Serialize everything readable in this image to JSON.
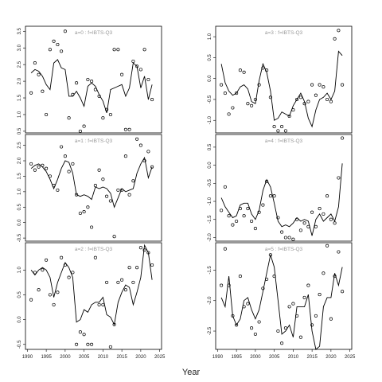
{
  "xlabel": "Year",
  "x_ticks": [
    1990,
    1995,
    2000,
    2005,
    2010,
    2015,
    2020,
    2025
  ],
  "chart_data": [
    {
      "type": "scatter",
      "title": "a=0  :  f=IBTS-Q3",
      "xlim": [
        1989.5,
        2025.5
      ],
      "ylim": [
        0.45,
        3.65
      ],
      "yticks": [
        0.5,
        1.0,
        1.5,
        2.0,
        2.5,
        3.0,
        3.5
      ],
      "ytick_labels": [
        "0.5",
        "1.0",
        "1.5",
        "2.0",
        "2.5",
        "3.0",
        "3.5"
      ],
      "x": [
        1991,
        1992,
        1993,
        1994,
        1995,
        1996,
        1997,
        1998,
        1999,
        2000,
        2001,
        2002,
        2003,
        2004,
        2005,
        2006,
        2007,
        2008,
        2009,
        2010,
        2011,
        2012,
        2013,
        2014,
        2015,
        2016,
        2017,
        2018,
        2019,
        2020,
        2021,
        2022,
        2023
      ],
      "observed": [
        1.65,
        2.55,
        2.2,
        1.7,
        1.0,
        2.95,
        3.2,
        3.1,
        2.9,
        3.5,
        0.9,
        1.6,
        1.95,
        0.5,
        0.65,
        2.05,
        2.0,
        1.75,
        1.55,
        0.9,
        1.15,
        1.0,
        2.95,
        2.95,
        2.2,
        0.55,
        0.55,
        2.6,
        2.45,
        2.35,
        2.95,
        2.05,
        1.45
      ],
      "fitted": [
        2.25,
        2.35,
        2.3,
        2.15,
        1.9,
        1.75,
        2.55,
        2.65,
        2.4,
        2.35,
        1.55,
        1.55,
        1.7,
        1.5,
        1.25,
        1.85,
        1.95,
        1.85,
        1.6,
        1.4,
        1.05,
        1.75,
        1.8,
        1.85,
        1.9,
        1.55,
        1.8,
        2.55,
        2.45,
        1.8,
        2.15,
        1.45,
        1.9
      ]
    },
    {
      "type": "scatter",
      "title": "a=1  :  f=IBTS-Q3",
      "xlim": [
        1989.5,
        2025.5
      ],
      "ylim": [
        -0.6,
        2.85
      ],
      "yticks": [
        -0.5,
        0.0,
        0.5,
        1.0,
        1.5,
        2.0,
        2.5
      ],
      "ytick_labels": [
        "-0.5",
        "0.0",
        "0.5",
        "1.0",
        "1.5",
        "2.0",
        "2.5"
      ],
      "x": [
        1991,
        1992,
        1993,
        1994,
        1995,
        1996,
        1997,
        1998,
        1999,
        2000,
        2001,
        2002,
        2003,
        2004,
        2005,
        2006,
        2007,
        2008,
        2009,
        2010,
        2011,
        2012,
        2013,
        2014,
        2015,
        2016,
        2017,
        2018,
        2019,
        2020,
        2021,
        2022,
        2023
      ],
      "observed": [
        1.9,
        1.7,
        1.8,
        1.85,
        1.75,
        1.5,
        1.2,
        1.05,
        2.45,
        2.15,
        1.65,
        1.9,
        0.9,
        0.3,
        0.35,
        0.5,
        -0.15,
        1.2,
        1.7,
        1.4,
        0.85,
        0.7,
        -0.45,
        1.05,
        1.05,
        2.15,
        0.9,
        1.35,
        2.7,
        2.5,
        2.0,
        2.3,
        1.8
      ],
      "fitted": [
        1.75,
        1.85,
        1.9,
        1.8,
        1.65,
        1.4,
        1.1,
        1.4,
        1.75,
        2.0,
        1.95,
        1.6,
        0.9,
        0.85,
        0.9,
        0.85,
        0.75,
        1.15,
        1.1,
        1.15,
        1.1,
        0.95,
        0.5,
        0.8,
        1.1,
        1.0,
        1.05,
        1.1,
        1.6,
        1.9,
        2.1,
        1.45,
        1.8
      ]
    },
    {
      "type": "scatter",
      "title": "a=2  :  f=IBTS-Q3",
      "xlim": [
        1989.5,
        2025.5
      ],
      "ylim": [
        -0.6,
        1.55
      ],
      "yticks": [
        -0.5,
        0.0,
        0.5,
        1.0
      ],
      "ytick_labels": [
        "-0.5",
        "0.0",
        "0.5",
        "1.0"
      ],
      "x": [
        1991,
        1992,
        1993,
        1994,
        1995,
        1996,
        1997,
        1998,
        1999,
        2000,
        2001,
        2002,
        2003,
        2004,
        2005,
        2006,
        2007,
        2008,
        2009,
        2010,
        2011,
        2012,
        2013,
        2014,
        2015,
        2016,
        2017,
        2018,
        2019,
        2020,
        2021,
        2022,
        2023
      ],
      "observed": [
        0.4,
        0.95,
        0.6,
        1.0,
        1.2,
        0.5,
        0.3,
        0.55,
        1.25,
        1.1,
        0.85,
        0.95,
        -0.5,
        -0.25,
        -0.3,
        -0.5,
        -0.5,
        1.25,
        0.3,
        0.3,
        0.75,
        -0.55,
        -0.1,
        0.75,
        0.8,
        0.6,
        1.05,
        0.75,
        1.05,
        1.45,
        1.4,
        1.35,
        1.1
      ],
      "fitted": [
        1.0,
        0.9,
        1.0,
        1.05,
        1.0,
        0.85,
        0.45,
        0.75,
        0.95,
        1.15,
        1.05,
        0.85,
        -0.05,
        0.0,
        0.2,
        0.15,
        0.3,
        0.35,
        0.35,
        0.45,
        0.1,
        0.05,
        -0.1,
        0.35,
        0.55,
        0.7,
        0.65,
        0.3,
        0.55,
        0.85,
        1.5,
        1.35,
        0.8
      ]
    },
    {
      "type": "scatter",
      "title": "a=3  :  f=IBTS-Q3",
      "xlim": [
        1989.5,
        2025.5
      ],
      "ylim": [
        -1.3,
        1.25
      ],
      "yticks": [
        -1.0,
        -0.5,
        0.0,
        0.5,
        1.0
      ],
      "ytick_labels": [
        "-1.0",
        "-0.5",
        "0.0",
        "0.5",
        "1.0"
      ],
      "x": [
        1991,
        1992,
        1993,
        1994,
        1995,
        1996,
        1997,
        1998,
        1999,
        2000,
        2001,
        2002,
        2003,
        2004,
        2005,
        2006,
        2007,
        2008,
        2009,
        2010,
        2011,
        2012,
        2013,
        2014,
        2015,
        2016,
        2017,
        2018,
        2019,
        2020,
        2021,
        2022,
        2023
      ],
      "observed": [
        -0.15,
        -0.35,
        -0.85,
        -0.7,
        -0.35,
        0.2,
        0.15,
        -0.6,
        -0.65,
        -0.5,
        -0.15,
        0.25,
        0.2,
        -0.45,
        -1.15,
        -1.25,
        -1.15,
        -1.25,
        -0.9,
        -0.75,
        -0.5,
        -0.45,
        -0.6,
        -0.55,
        -0.15,
        -0.4,
        -0.15,
        -0.2,
        -0.5,
        -0.55,
        0.95,
        1.15,
        -0.15
      ],
      "fitted": [
        0.35,
        -0.1,
        -0.3,
        -0.4,
        -0.35,
        -0.2,
        -0.15,
        -0.25,
        -0.55,
        -0.6,
        -0.05,
        0.35,
        0.15,
        -0.3,
        -1.0,
        -0.95,
        -0.8,
        -0.85,
        -0.9,
        -0.65,
        -0.5,
        -0.35,
        -0.55,
        -0.95,
        -1.15,
        -0.75,
        -0.5,
        -0.45,
        -0.35,
        -0.5,
        -0.3,
        0.65,
        0.55
      ]
    },
    {
      "type": "scatter",
      "title": "a=4  :  f=IBTS-Q3",
      "xlim": [
        1989.5,
        2025.5
      ],
      "ylim": [
        -2.1,
        0.85
      ],
      "yticks": [
        -2.0,
        -1.5,
        -1.0,
        -0.5,
        0.0,
        0.5
      ],
      "ytick_labels": [
        "-2.0",
        "-1.5",
        "-1.0",
        "-0.5",
        "0.0",
        "0.5"
      ],
      "x": [
        1991,
        1992,
        1993,
        1994,
        1995,
        1996,
        1997,
        1998,
        1999,
        2000,
        2001,
        2002,
        2003,
        2004,
        2005,
        2006,
        2007,
        2008,
        2009,
        2010,
        2011,
        2012,
        2013,
        2014,
        2015,
        2016,
        2017,
        2018,
        2019,
        2020,
        2021,
        2022,
        2023
      ],
      "observed": [
        -1.25,
        -0.6,
        -1.4,
        -1.65,
        -1.55,
        -1.2,
        -1.4,
        -1.2,
        -1.55,
        -1.75,
        -1.3,
        -1.1,
        -0.45,
        -0.85,
        -0.85,
        -1.45,
        -1.85,
        -2.0,
        -2.0,
        -2.05,
        -1.5,
        -1.8,
        -1.6,
        -1.7,
        -1.3,
        -1.7,
        -1.2,
        -1.35,
        -0.85,
        -1.5,
        -1.6,
        -0.35,
        0.75
      ],
      "fitted": [
        -0.9,
        -1.15,
        -1.3,
        -1.45,
        -1.4,
        -1.1,
        -1.05,
        -1.05,
        -1.35,
        -1.5,
        -1.25,
        -0.7,
        -0.4,
        -0.6,
        -1.05,
        -1.55,
        -1.7,
        -1.65,
        -1.7,
        -1.6,
        -1.45,
        -1.55,
        -1.5,
        -1.55,
        -1.95,
        -1.5,
        -1.35,
        -1.55,
        -1.45,
        -1.35,
        -1.55,
        -1.15,
        0.05
      ]
    },
    {
      "type": "scatter",
      "title": "a=5  :  f=IBTS-Q3",
      "xlim": [
        1989.5,
        2025.5
      ],
      "ylim": [
        -2.8,
        -1.05
      ],
      "yticks": [
        -2.5,
        -2.0,
        -1.5
      ],
      "ytick_labels": [
        "-2.5",
        "-2.0",
        "-1.5"
      ],
      "x": [
        1991,
        1992,
        1993,
        1994,
        1995,
        1996,
        1997,
        1998,
        1999,
        2000,
        2001,
        2002,
        2003,
        2004,
        2005,
        2006,
        2007,
        2008,
        2009,
        2010,
        2011,
        2012,
        2013,
        2014,
        2015,
        2016,
        2017,
        2018,
        2019,
        2020,
        2021,
        2022,
        2023
      ],
      "observed": [
        -1.75,
        -1.15,
        -1.75,
        -2.25,
        -2.4,
        -1.6,
        -2.1,
        -2.05,
        -2.45,
        -2.55,
        -2.35,
        -1.8,
        -1.65,
        -1.25,
        -1.6,
        -2.5,
        -2.7,
        -2.45,
        -2.1,
        -2.05,
        -2.25,
        -2.6,
        -1.95,
        -1.75,
        -2.4,
        -2.25,
        -1.9,
        -1.55,
        -1.1,
        -2.3,
        -1.6,
        -1.2,
        -1.85
      ],
      "fitted": [
        -1.95,
        -2.1,
        -1.6,
        -2.25,
        -2.4,
        -2.3,
        -2.0,
        -1.95,
        -2.15,
        -2.3,
        -2.15,
        -1.85,
        -1.55,
        -1.25,
        -1.45,
        -2.0,
        -2.55,
        -2.5,
        -2.4,
        -2.6,
        -2.1,
        -2.1,
        -2.1,
        -1.9,
        -2.5,
        -2.8,
        -2.75,
        -2.1,
        -1.95,
        -1.95,
        -1.55,
        -1.75,
        -1.45
      ]
    }
  ]
}
